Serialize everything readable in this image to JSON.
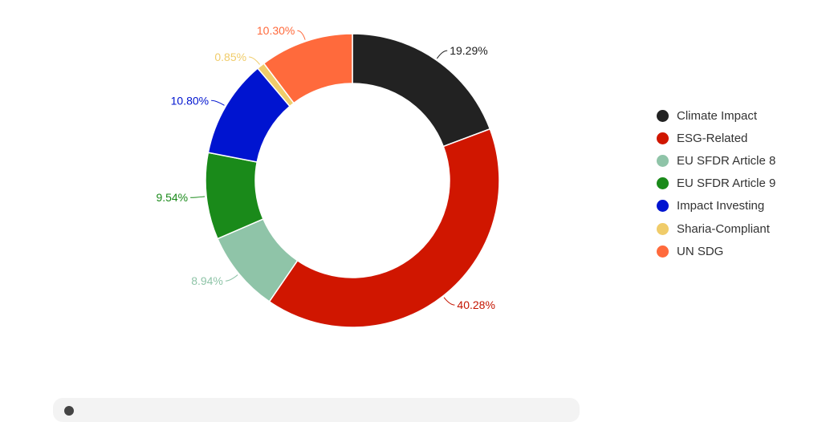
{
  "chart_data": {
    "type": "pie",
    "donut": true,
    "title": "",
    "legend_position": "right",
    "series": [
      {
        "name": "Climate Impact",
        "value": 19.29,
        "label": "19.29%",
        "color": "#222222",
        "label_color": "#222222"
      },
      {
        "name": "ESG-Related",
        "value": 40.28,
        "label": "40.28%",
        "color": "#d01600",
        "label_color": "#c41400"
      },
      {
        "name": "EU SFDR Article 8",
        "value": 8.94,
        "label": "8.94%",
        "color": "#8fc4a8",
        "label_color": "#8fc4a8"
      },
      {
        "name": "EU SFDR Article 9",
        "value": 9.54,
        "label": "9.54%",
        "color": "#1a8a1a",
        "label_color": "#1a8a1a"
      },
      {
        "name": "Impact Investing",
        "value": 10.8,
        "label": "10.80%",
        "color": "#0014d0",
        "label_color": "#0014d0"
      },
      {
        "name": "Sharia-Compliant",
        "value": 0.85,
        "label": "0.85%",
        "color": "#f0cc6a",
        "label_color": "#f0cc6a"
      },
      {
        "name": "UN SDG",
        "value": 10.3,
        "label": "10.30%",
        "color": "#ff6a3c",
        "label_color": "#ff6a3c"
      }
    ]
  },
  "legend": {
    "items": [
      {
        "label": "Climate Impact",
        "color": "#222222"
      },
      {
        "label": "ESG-Related",
        "color": "#d01600"
      },
      {
        "label": "EU SFDR Article 8",
        "color": "#8fc4a8"
      },
      {
        "label": "EU SFDR Article 9",
        "color": "#1a8a1a"
      },
      {
        "label": "Impact Investing",
        "color": "#0014d0"
      },
      {
        "label": "Sharia-Compliant",
        "color": "#f0cc6a"
      },
      {
        "label": "UN SDG",
        "color": "#ff6a3c"
      }
    ]
  }
}
